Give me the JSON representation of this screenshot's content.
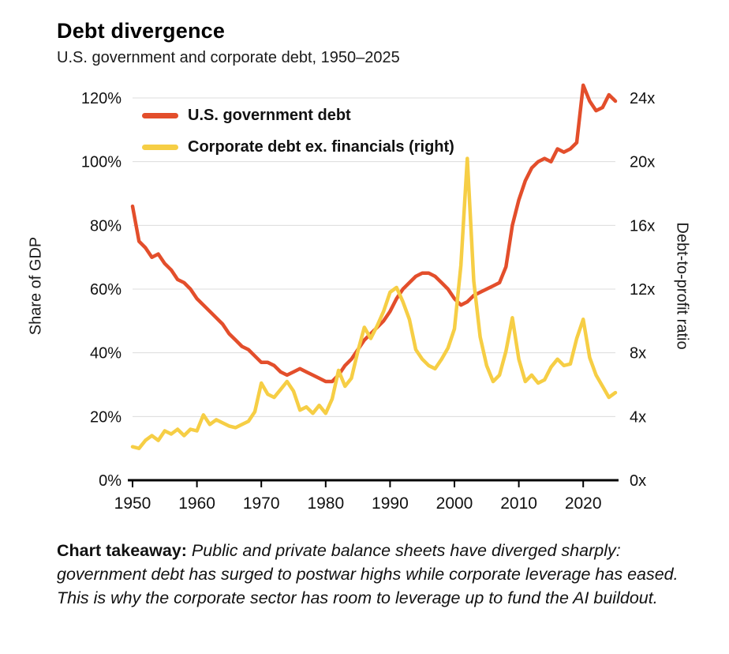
{
  "header": {
    "title": "Debt divergence",
    "subtitle": "U.S. government and corporate debt, 1950–2025"
  },
  "chart_data": {
    "type": "line",
    "title": "Debt divergence",
    "subtitle": "U.S. government and corporate debt, 1950–2025",
    "grid": "horizontal",
    "legend_position": "top-left-inside",
    "x": [
      1950,
      1951,
      1952,
      1953,
      1954,
      1955,
      1956,
      1957,
      1958,
      1959,
      1960,
      1961,
      1962,
      1963,
      1964,
      1965,
      1966,
      1967,
      1968,
      1969,
      1970,
      1971,
      1972,
      1973,
      1974,
      1975,
      1976,
      1977,
      1978,
      1979,
      1980,
      1981,
      1982,
      1983,
      1984,
      1985,
      1986,
      1987,
      1988,
      1989,
      1990,
      1991,
      1992,
      1993,
      1994,
      1995,
      1996,
      1997,
      1998,
      1999,
      2000,
      2001,
      2002,
      2003,
      2004,
      2005,
      2006,
      2007,
      2008,
      2009,
      2010,
      2011,
      2012,
      2013,
      2014,
      2015,
      2016,
      2017,
      2018,
      2019,
      2020,
      2021,
      2022,
      2023,
      2024,
      2025
    ],
    "x_ticks": [
      1950,
      1960,
      1970,
      1980,
      1990,
      2000,
      2010,
      2020
    ],
    "left_axis": {
      "label": "Share of GDP",
      "min": 0,
      "max": 120,
      "ticks": [
        "0%",
        "20%",
        "40%",
        "60%",
        "80%",
        "100%",
        "120%"
      ]
    },
    "right_axis": {
      "label": "Debt-to-profit ratio",
      "min": 0,
      "max": 24,
      "ticks": [
        "0x",
        "4x",
        "8x",
        "12x",
        "16x",
        "20x",
        "24x"
      ]
    },
    "series": [
      {
        "name": "U.S. government debt",
        "axis": "left",
        "unit": "% of GDP",
        "color": "#E34E2B",
        "values": [
          86,
          75,
          73,
          70,
          71,
          68,
          66,
          63,
          62,
          60,
          57,
          55,
          53,
          51,
          49,
          46,
          44,
          42,
          41,
          39,
          37,
          37,
          36,
          34,
          33,
          34,
          35,
          34,
          33,
          32,
          31,
          31,
          33,
          36,
          38,
          41,
          44,
          46,
          48,
          50,
          53,
          57,
          60,
          62,
          64,
          65,
          65,
          64,
          62,
          60,
          57,
          55,
          56,
          58,
          59,
          60,
          61,
          62,
          67,
          80,
          88,
          94,
          98,
          100,
          101,
          100,
          104,
          103,
          104,
          106,
          124,
          119,
          116,
          117,
          121,
          119
        ]
      },
      {
        "name": "Corporate debt ex. financials (right)",
        "axis": "right",
        "unit": "debt-to-profit ratio (x)",
        "color": "#F6CE45",
        "values": [
          2.1,
          2.0,
          2.5,
          2.8,
          2.5,
          3.1,
          2.9,
          3.2,
          2.8,
          3.2,
          3.1,
          4.1,
          3.5,
          3.8,
          3.6,
          3.4,
          3.3,
          3.5,
          3.7,
          4.3,
          6.1,
          5.4,
          5.2,
          5.7,
          6.2,
          5.6,
          4.4,
          4.6,
          4.2,
          4.7,
          4.2,
          5.1,
          6.9,
          5.9,
          6.4,
          8.1,
          9.6,
          8.9,
          9.7,
          10.6,
          11.8,
          12.1,
          11.2,
          10.1,
          8.2,
          7.6,
          7.2,
          7.0,
          7.6,
          8.3,
          9.5,
          13.5,
          20.2,
          12.5,
          9.0,
          7.2,
          6.2,
          6.6,
          8.1,
          10.2,
          7.6,
          6.2,
          6.6,
          6.1,
          6.3,
          7.1,
          7.6,
          7.2,
          7.3,
          8.9,
          10.1,
          7.7,
          6.6,
          5.9,
          5.2,
          5.5
        ]
      }
    ],
    "colors": {
      "grid": "#dcdcdc",
      "axis": "#000000",
      "text": "#111111"
    }
  },
  "takeaway": {
    "label": "Chart takeaway:",
    "text": " Public and private balance sheets have diverged sharply: government debt has surged to postwar highs while corporate leverage has eased. This is why the corporate sector has room to leverage up to fund the AI buildout."
  }
}
